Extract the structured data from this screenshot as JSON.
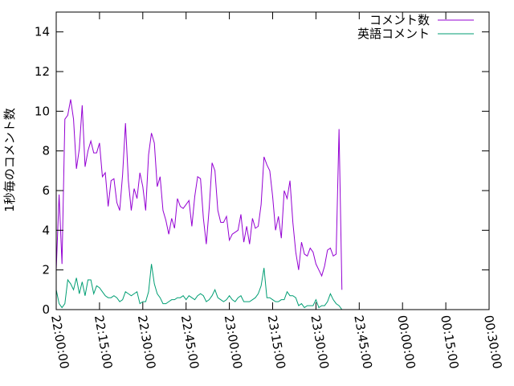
{
  "chart_data": {
    "type": "line",
    "title": "",
    "xlabel": "",
    "ylabel": "1秒毎のコメント数",
    "ylim": [
      0,
      15
    ],
    "xlim": [
      "22:00:00",
      "00:30:00"
    ],
    "yticks": [
      0,
      2,
      4,
      6,
      8,
      10,
      12,
      14
    ],
    "xtick_labels": [
      "22:00:00",
      "22:15:00",
      "22:30:00",
      "22:45:00",
      "23:00:00",
      "23:15:00",
      "23:30:00",
      "23:45:00",
      "00:00:00",
      "00:15:00",
      "00:30:00"
    ],
    "grid": false,
    "legend_position": "top-right",
    "colors": {
      "comments": "#9400d3",
      "english_comments": "#009e73",
      "axes": "#000000"
    },
    "series": [
      {
        "name": "コメント数",
        "color": "#9400d3",
        "points": [
          [
            "22:00:00",
            2.0
          ],
          [
            "22:01:00",
            5.8
          ],
          [
            "22:02:00",
            2.3
          ],
          [
            "22:03:00",
            9.6
          ],
          [
            "22:04:00",
            9.8
          ],
          [
            "22:05:00",
            10.6
          ],
          [
            "22:06:00",
            9.6
          ],
          [
            "22:07:00",
            7.1
          ],
          [
            "22:08:00",
            8.1
          ],
          [
            "22:09:00",
            10.3
          ],
          [
            "22:10:00",
            7.2
          ],
          [
            "22:11:00",
            8.0
          ],
          [
            "22:12:00",
            8.5
          ],
          [
            "22:13:00",
            7.9
          ],
          [
            "22:14:00",
            7.9
          ],
          [
            "22:15:00",
            8.4
          ],
          [
            "22:16:00",
            6.7
          ],
          [
            "22:17:00",
            6.9
          ],
          [
            "22:18:00",
            5.2
          ],
          [
            "22:19:00",
            6.5
          ],
          [
            "22:20:00",
            6.6
          ],
          [
            "22:21:00",
            5.4
          ],
          [
            "22:22:00",
            5.0
          ],
          [
            "22:23:00",
            6.8
          ],
          [
            "22:24:00",
            9.4
          ],
          [
            "22:25:00",
            6.5
          ],
          [
            "22:26:00",
            5.0
          ],
          [
            "22:27:00",
            6.1
          ],
          [
            "22:28:00",
            5.6
          ],
          [
            "22:29:00",
            6.9
          ],
          [
            "22:30:00",
            6.2
          ],
          [
            "22:31:00",
            5.0
          ],
          [
            "22:32:00",
            7.8
          ],
          [
            "22:33:00",
            8.9
          ],
          [
            "22:34:00",
            8.4
          ],
          [
            "22:35:00",
            6.2
          ],
          [
            "22:36:00",
            6.7
          ],
          [
            "22:37:00",
            5.0
          ],
          [
            "22:38:00",
            4.5
          ],
          [
            "22:39:00",
            3.8
          ],
          [
            "22:40:00",
            4.6
          ],
          [
            "22:41:00",
            4.1
          ],
          [
            "22:42:00",
            5.6
          ],
          [
            "22:43:00",
            5.2
          ],
          [
            "22:44:00",
            5.1
          ],
          [
            "22:45:00",
            5.3
          ],
          [
            "22:46:00",
            5.5
          ],
          [
            "22:47:00",
            4.2
          ],
          [
            "22:48:00",
            5.7
          ],
          [
            "22:49:00",
            6.7
          ],
          [
            "22:50:00",
            6.6
          ],
          [
            "22:51:00",
            4.6
          ],
          [
            "22:52:00",
            3.3
          ],
          [
            "22:53:00",
            5.1
          ],
          [
            "22:54:00",
            7.4
          ],
          [
            "22:55:00",
            7.0
          ],
          [
            "22:56:00",
            5.0
          ],
          [
            "22:57:00",
            4.4
          ],
          [
            "22:58:00",
            4.4
          ],
          [
            "22:59:00",
            4.7
          ],
          [
            "23:00:00",
            3.5
          ],
          [
            "23:01:00",
            3.8
          ],
          [
            "23:02:00",
            3.9
          ],
          [
            "23:03:00",
            4.0
          ],
          [
            "23:04:00",
            4.8
          ],
          [
            "23:05:00",
            3.4
          ],
          [
            "23:06:00",
            4.2
          ],
          [
            "23:07:00",
            3.3
          ],
          [
            "23:08:00",
            4.6
          ],
          [
            "23:09:00",
            4.1
          ],
          [
            "23:10:00",
            4.2
          ],
          [
            "23:11:00",
            5.3
          ],
          [
            "23:12:00",
            7.7
          ],
          [
            "23:13:00",
            7.3
          ],
          [
            "23:14:00",
            7.0
          ],
          [
            "23:15:00",
            5.7
          ],
          [
            "23:16:00",
            4.0
          ],
          [
            "23:17:00",
            4.7
          ],
          [
            "23:18:00",
            3.6
          ],
          [
            "23:19:00",
            6.0
          ],
          [
            "23:20:00",
            5.6
          ],
          [
            "23:21:00",
            6.5
          ],
          [
            "23:22:00",
            4.4
          ],
          [
            "23:23:00",
            2.9
          ],
          [
            "23:24:00",
            2.0
          ],
          [
            "23:25:00",
            3.4
          ],
          [
            "23:26:00",
            2.8
          ],
          [
            "23:27:00",
            2.7
          ],
          [
            "23:28:00",
            3.1
          ],
          [
            "23:29:00",
            2.9
          ],
          [
            "23:30:00",
            2.3
          ],
          [
            "23:31:00",
            2.0
          ],
          [
            "23:32:00",
            1.7
          ],
          [
            "23:33:00",
            2.2
          ],
          [
            "23:34:00",
            3.0
          ],
          [
            "23:35:00",
            3.1
          ],
          [
            "23:36:00",
            2.7
          ],
          [
            "23:37:00",
            2.8
          ],
          [
            "23:38:00",
            9.1
          ],
          [
            "23:39:00",
            1.0
          ]
        ]
      },
      {
        "name": "英語コメント",
        "color": "#009e73",
        "points": [
          [
            "22:00:00",
            1.0
          ],
          [
            "22:01:00",
            0.3
          ],
          [
            "22:02:00",
            0.1
          ],
          [
            "22:03:00",
            0.3
          ],
          [
            "22:04:00",
            1.5
          ],
          [
            "22:05:00",
            1.3
          ],
          [
            "22:06:00",
            1.0
          ],
          [
            "22:07:00",
            1.6
          ],
          [
            "22:08:00",
            0.8
          ],
          [
            "22:09:00",
            1.4
          ],
          [
            "22:10:00",
            0.7
          ],
          [
            "22:11:00",
            1.5
          ],
          [
            "22:12:00",
            1.5
          ],
          [
            "22:13:00",
            0.8
          ],
          [
            "22:14:00",
            1.2
          ],
          [
            "22:15:00",
            1.1
          ],
          [
            "22:16:00",
            0.9
          ],
          [
            "22:17:00",
            0.7
          ],
          [
            "22:18:00",
            0.6
          ],
          [
            "22:19:00",
            0.6
          ],
          [
            "22:20:00",
            0.7
          ],
          [
            "22:21:00",
            0.6
          ],
          [
            "22:22:00",
            0.4
          ],
          [
            "22:23:00",
            0.5
          ],
          [
            "22:24:00",
            0.9
          ],
          [
            "22:25:00",
            0.8
          ],
          [
            "22:26:00",
            0.7
          ],
          [
            "22:27:00",
            0.8
          ],
          [
            "22:28:00",
            0.9
          ],
          [
            "22:29:00",
            0.3
          ],
          [
            "22:30:00",
            0.4
          ],
          [
            "22:31:00",
            0.4
          ],
          [
            "22:32:00",
            0.9
          ],
          [
            "22:33:00",
            2.3
          ],
          [
            "22:34:00",
            1.3
          ],
          [
            "22:35:00",
            0.8
          ],
          [
            "22:36:00",
            0.6
          ],
          [
            "22:37:00",
            0.3
          ],
          [
            "22:38:00",
            0.3
          ],
          [
            "22:39:00",
            0.4
          ],
          [
            "22:40:00",
            0.5
          ],
          [
            "22:41:00",
            0.5
          ],
          [
            "22:42:00",
            0.6
          ],
          [
            "22:43:00",
            0.6
          ],
          [
            "22:44:00",
            0.7
          ],
          [
            "22:45:00",
            0.5
          ],
          [
            "22:46:00",
            0.7
          ],
          [
            "22:47:00",
            0.6
          ],
          [
            "22:48:00",
            0.5
          ],
          [
            "22:49:00",
            0.7
          ],
          [
            "22:50:00",
            0.8
          ],
          [
            "22:51:00",
            0.7
          ],
          [
            "22:52:00",
            0.4
          ],
          [
            "22:53:00",
            0.5
          ],
          [
            "22:54:00",
            0.7
          ],
          [
            "22:55:00",
            1.0
          ],
          [
            "22:56:00",
            0.6
          ],
          [
            "22:57:00",
            0.5
          ],
          [
            "22:58:00",
            0.4
          ],
          [
            "22:59:00",
            0.5
          ],
          [
            "23:00:00",
            0.7
          ],
          [
            "23:01:00",
            0.5
          ],
          [
            "23:02:00",
            0.4
          ],
          [
            "23:03:00",
            0.6
          ],
          [
            "23:04:00",
            0.7
          ],
          [
            "23:05:00",
            0.4
          ],
          [
            "23:06:00",
            0.4
          ],
          [
            "23:07:00",
            0.4
          ],
          [
            "23:08:00",
            0.5
          ],
          [
            "23:09:00",
            0.6
          ],
          [
            "23:10:00",
            0.8
          ],
          [
            "23:11:00",
            1.2
          ],
          [
            "23:12:00",
            2.1
          ],
          [
            "23:13:00",
            0.6
          ],
          [
            "23:14:00",
            0.6
          ],
          [
            "23:15:00",
            0.5
          ],
          [
            "23:16:00",
            0.4
          ],
          [
            "23:17:00",
            0.4
          ],
          [
            "23:18:00",
            0.5
          ],
          [
            "23:19:00",
            0.5
          ],
          [
            "23:20:00",
            0.9
          ],
          [
            "23:21:00",
            0.7
          ],
          [
            "23:22:00",
            0.7
          ],
          [
            "23:23:00",
            0.6
          ],
          [
            "23:24:00",
            0.2
          ],
          [
            "23:25:00",
            0.3
          ],
          [
            "23:26:00",
            0.1
          ],
          [
            "23:27:00",
            0.2
          ],
          [
            "23:28:00",
            0.2
          ],
          [
            "23:29:00",
            0.2
          ],
          [
            "23:30:00",
            0.5
          ],
          [
            "23:31:00",
            0.1
          ],
          [
            "23:32:00",
            0.2
          ],
          [
            "23:33:00",
            0.2
          ],
          [
            "23:34:00",
            0.4
          ],
          [
            "23:35:00",
            0.8
          ],
          [
            "23:36:00",
            0.5
          ],
          [
            "23:37:00",
            0.3
          ],
          [
            "23:38:00",
            0.2
          ],
          [
            "23:39:00",
            0.0
          ]
        ]
      }
    ]
  }
}
